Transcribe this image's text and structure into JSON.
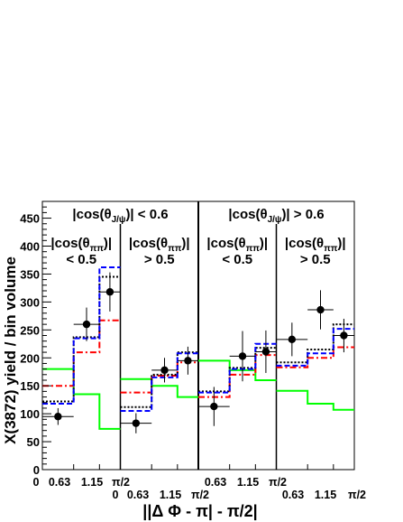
{
  "chart_data": {
    "type": "step-histogram",
    "ylabel": "X(3872) yield / bin volume",
    "xlabel": "||Δ Φ - π| - π/2|",
    "yticks": [
      0,
      50,
      100,
      150,
      200,
      250,
      300,
      350,
      400,
      450
    ],
    "ylim": [
      0,
      480
    ],
    "bin_edges": [
      0,
      0.63,
      1.15,
      1.5708
    ],
    "x_tick_labels_top_row": [
      "0",
      "0.63",
      "1.15",
      "π/2",
      "0.63",
      "1.15",
      "π/2"
    ],
    "x_tick_labels_bottom_row": [
      "0",
      "0.63",
      "1.15",
      "π/2",
      "0.63",
      "1.15",
      "π/2"
    ],
    "group_labels": [
      "|cos(θJ/ψ)| < 0.6",
      "|cos(θJ/ψ)| > 0.6"
    ],
    "panel_labels": [
      {
        "line1": "|cos(θππ)|",
        "line2": "< 0.5"
      },
      {
        "line1": "|cos(θππ)|",
        "line2": "> 0.5"
      },
      {
        "line1": "|cos(θππ)|",
        "line2": "< 0.5"
      },
      {
        "line1": "|cos(θππ)|",
        "line2": "> 0.5"
      }
    ],
    "panels": [
      {
        "data": {
          "y": [
            95,
            260,
            318
          ],
          "err_low": [
            15,
            30,
            35
          ],
          "err_high": [
            15,
            30,
            35
          ]
        },
        "series": [
          {
            "style": "solid",
            "color": "#00ff00",
            "values": [
              180,
              135,
              73
            ]
          },
          {
            "style": "dashdot",
            "color": "#ff0000",
            "values": [
              150,
              210,
              267
            ]
          },
          {
            "style": "dotted",
            "color": "#000000",
            "values": [
              122,
              237,
              345
            ]
          },
          {
            "style": "dashed",
            "color": "#0000ff",
            "values": [
              118,
              235,
              362
            ]
          }
        ]
      },
      {
        "data": {
          "y": [
            83,
            178,
            195
          ],
          "err_low": [
            18,
            22,
            25
          ],
          "err_high": [
            18,
            22,
            25
          ]
        },
        "series": [
          {
            "style": "solid",
            "color": "#00ff00",
            "values": [
              162,
              150,
              130
            ]
          },
          {
            "style": "dashdot",
            "color": "#ff0000",
            "values": [
              138,
              168,
              192
            ]
          },
          {
            "style": "dotted",
            "color": "#000000",
            "values": [
              112,
              170,
              210
            ]
          },
          {
            "style": "dashed",
            "color": "#0000ff",
            "values": [
              105,
              165,
              208
            ]
          }
        ]
      },
      {
        "data": {
          "y": [
            113,
            203,
            211
          ],
          "err_low": [
            35,
            45,
            38
          ],
          "err_high": [
            35,
            45,
            38
          ]
        },
        "series": [
          {
            "style": "solid",
            "color": "#00ff00",
            "values": [
              195,
              178,
              160
            ]
          },
          {
            "style": "dashdot",
            "color": "#ff0000",
            "values": [
              130,
              170,
              205
            ]
          },
          {
            "style": "dotted",
            "color": "#000000",
            "values": [
              140,
              182,
              218
            ]
          },
          {
            "style": "dashed",
            "color": "#0000ff",
            "values": [
              138,
              180,
              225
            ]
          }
        ]
      },
      {
        "data": {
          "y": [
            233,
            286,
            240
          ],
          "err_low": [
            30,
            35,
            30
          ],
          "err_high": [
            30,
            35,
            30
          ]
        },
        "series": [
          {
            "style": "solid",
            "color": "#00ff00",
            "values": [
              141,
              118,
              107
            ]
          },
          {
            "style": "dashdot",
            "color": "#ff0000",
            "values": [
              183,
              200,
              219
            ]
          },
          {
            "style": "dotted",
            "color": "#000000",
            "values": [
              192,
              215,
              260
            ]
          },
          {
            "style": "dashed",
            "color": "#0000ff",
            "values": [
              186,
              208,
              252
            ]
          }
        ]
      }
    ]
  }
}
